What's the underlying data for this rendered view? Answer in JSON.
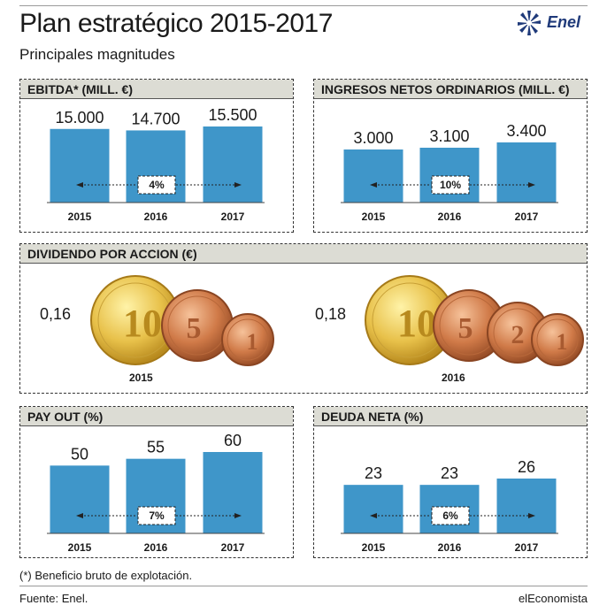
{
  "header": {
    "title": "Plan estratégico 2015-2017",
    "subtitle": "Principales magnitudes",
    "logo_text": "Enel"
  },
  "dividend": {
    "title": "DIVIDENDO POR ACCION (€)",
    "items": [
      {
        "year": "2015",
        "value": "0,16",
        "coins": [
          "10",
          "5",
          "1"
        ]
      },
      {
        "year": "2016",
        "value": "0,18",
        "coins": [
          "10",
          "5",
          "2",
          "1"
        ]
      }
    ]
  },
  "chart_data": [
    {
      "type": "bar",
      "id": "ebitda",
      "title": "EBITDA* (MILL. €)",
      "categories": [
        "2015",
        "2016",
        "2017"
      ],
      "values": [
        15000,
        14700,
        15500
      ],
      "value_labels": [
        "15.000",
        "14.700",
        "15.500"
      ],
      "growth_label": "4%",
      "ylim": [
        0,
        15500
      ]
    },
    {
      "type": "bar",
      "id": "ingresos",
      "title": "INGRESOS NETOS ORDINARIOS (MILL. €)",
      "categories": [
        "2015",
        "2016",
        "2017"
      ],
      "values": [
        3000,
        3100,
        3400
      ],
      "value_labels": [
        "3.000",
        "3.100",
        "3.400"
      ],
      "growth_label": "10%",
      "ylim": [
        0,
        3400
      ]
    },
    {
      "type": "bar",
      "id": "payout",
      "title": "PAY OUT (%)",
      "categories": [
        "2015",
        "2016",
        "2017"
      ],
      "values": [
        50,
        55,
        60
      ],
      "value_labels": [
        "50",
        "55",
        "60"
      ],
      "growth_label": "7%",
      "ylim": [
        0,
        60
      ]
    },
    {
      "type": "bar",
      "id": "deuda",
      "title": "DEUDA NETA (%)",
      "categories": [
        "2015",
        "2016",
        "2017"
      ],
      "values": [
        23,
        23,
        26
      ],
      "value_labels": [
        "23",
        "23",
        "26"
      ],
      "growth_label": "6%",
      "ylim": [
        0,
        26
      ]
    }
  ],
  "footer": {
    "footnote": "(*) Beneficio bruto de explotación.",
    "source": "Fuente: Enel.",
    "brand": "elEconomista"
  }
}
